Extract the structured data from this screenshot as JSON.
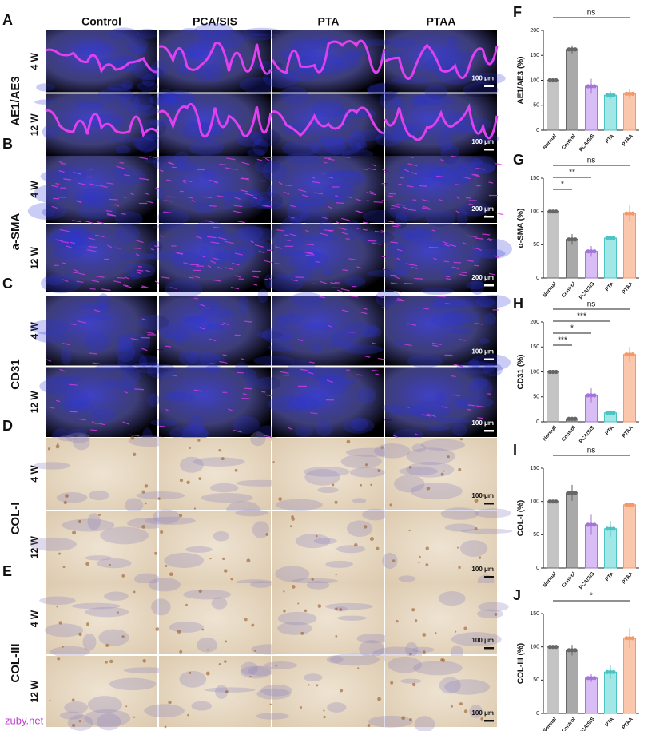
{
  "figure": {
    "columns": [
      "Control",
      "PCA/SIS",
      "PTA",
      "PTAA"
    ],
    "groups": [
      {
        "letter": "A",
        "stain": "AE1/AE3",
        "rows": [
          "4 W",
          "12 W"
        ],
        "scale_bar": [
          "100 μm",
          "100 μm"
        ]
      },
      {
        "letter": "B",
        "stain": "a-SMA",
        "rows": [
          "4 W",
          "12 W"
        ],
        "scale_bar": [
          "200 μm",
          "200 μm"
        ]
      },
      {
        "letter": "C",
        "stain": "CD31",
        "rows": [
          "4 W",
          "12 W"
        ],
        "scale_bar": [
          "100 μm",
          "100 μm"
        ]
      },
      {
        "letter": "D",
        "stain": "COL-I",
        "rows": [
          "4 W",
          "12 W"
        ],
        "scale_bar": [
          "100 μm",
          "100 μm"
        ]
      },
      {
        "letter": "E",
        "stain": "COL-III",
        "rows": [
          "4 W",
          "12 W"
        ],
        "scale_bar": [
          "100 μm",
          "100 μm"
        ]
      }
    ],
    "watermark": "zuby.net"
  },
  "chart_data": [
    {
      "type": "bar",
      "letter": "F",
      "ylabel": "AE1/AE3 (%)",
      "categories": [
        "Normal",
        "Control",
        "PCA/SIS",
        "PTA",
        "PTAA"
      ],
      "values": [
        100,
        162,
        88,
        70,
        73
      ],
      "errors": [
        0,
        8,
        15,
        8,
        10
      ],
      "colors": [
        "#c4c4c4",
        "#a9a9a9",
        "#d9bdf5",
        "#a3e6e6",
        "#fbc7ac"
      ],
      "edge_colors": [
        "#666666",
        "#666666",
        "#a474d8",
        "#4cc4c4",
        "#f29a6a"
      ],
      "ylim": [
        0,
        200
      ],
      "yticks": [
        0,
        50,
        100,
        150,
        200
      ],
      "annotations": [
        {
          "text": "ns",
          "from": "Normal",
          "to": "PTAA"
        }
      ]
    },
    {
      "type": "bar",
      "letter": "G",
      "ylabel": "α-SMA (%)",
      "categories": [
        "Normal",
        "Control",
        "PCA/SIS",
        "PTA",
        "PTAA"
      ],
      "values": [
        100,
        58,
        40,
        60,
        97
      ],
      "errors": [
        0,
        8,
        8,
        2,
        12
      ],
      "colors": [
        "#c4c4c4",
        "#a9a9a9",
        "#d9bdf5",
        "#a3e6e6",
        "#fbc7ac"
      ],
      "edge_colors": [
        "#666666",
        "#666666",
        "#a474d8",
        "#4cc4c4",
        "#f29a6a"
      ],
      "ylim": [
        0,
        150
      ],
      "yticks": [
        0,
        50,
        100,
        150
      ],
      "annotations": [
        {
          "text": "ns",
          "from": "Normal",
          "to": "PTAA"
        },
        {
          "text": "**",
          "from": "Normal",
          "to": "PCA/SIS"
        },
        {
          "text": "*",
          "from": "Normal",
          "to": "Control"
        }
      ]
    },
    {
      "type": "bar",
      "letter": "H",
      "ylabel": "CD31 (%)",
      "categories": [
        "Normal",
        "Control",
        "PCA/SIS",
        "PTA",
        "PTAA"
      ],
      "values": [
        100,
        6,
        53,
        18,
        135
      ],
      "errors": [
        0,
        3,
        14,
        5,
        15
      ],
      "colors": [
        "#c4c4c4",
        "#a9a9a9",
        "#d9bdf5",
        "#a3e6e6",
        "#fbc7ac"
      ],
      "edge_colors": [
        "#666666",
        "#666666",
        "#a474d8",
        "#4cc4c4",
        "#f29a6a"
      ],
      "ylim": [
        0,
        200
      ],
      "yticks": [
        0,
        50,
        100,
        150,
        200
      ],
      "annotations": [
        {
          "text": "ns",
          "from": "Normal",
          "to": "PTAA"
        },
        {
          "text": "***",
          "from": "Normal",
          "to": "PTA"
        },
        {
          "text": "*",
          "from": "Normal",
          "to": "PCA/SIS"
        },
        {
          "text": "***",
          "from": "Normal",
          "to": "Control"
        }
      ]
    },
    {
      "type": "bar",
      "letter": "I",
      "ylabel": "COL-I (%)",
      "categories": [
        "Normal",
        "Control",
        "PCA/SIS",
        "PTA",
        "PTAA"
      ],
      "values": [
        100,
        113,
        65,
        59,
        95
      ],
      "errors": [
        0,
        12,
        15,
        12,
        3
      ],
      "colors": [
        "#c4c4c4",
        "#a9a9a9",
        "#d9bdf5",
        "#a3e6e6",
        "#fbc7ac"
      ],
      "edge_colors": [
        "#666666",
        "#666666",
        "#a474d8",
        "#4cc4c4",
        "#f29a6a"
      ],
      "ylim": [
        0,
        150
      ],
      "yticks": [
        0,
        50,
        100,
        150
      ],
      "annotations": [
        {
          "text": "ns",
          "from": "Normal",
          "to": "PTAA"
        }
      ]
    },
    {
      "type": "bar",
      "letter": "J",
      "ylabel": "COL-III (%)",
      "categories": [
        "Normal",
        "Control",
        "PCA/SIS",
        "PTA",
        "PTAA"
      ],
      "values": [
        100,
        95,
        53,
        62,
        113
      ],
      "errors": [
        0,
        8,
        6,
        10,
        15
      ],
      "colors": [
        "#c4c4c4",
        "#a9a9a9",
        "#d9bdf5",
        "#a3e6e6",
        "#fbc7ac"
      ],
      "edge_colors": [
        "#666666",
        "#666666",
        "#a474d8",
        "#4cc4c4",
        "#f29a6a"
      ],
      "ylim": [
        0,
        150
      ],
      "yticks": [
        0,
        50,
        100,
        150
      ],
      "annotations": [
        {
          "text": "*",
          "from": "Normal",
          "to": "PTAA"
        }
      ]
    }
  ]
}
